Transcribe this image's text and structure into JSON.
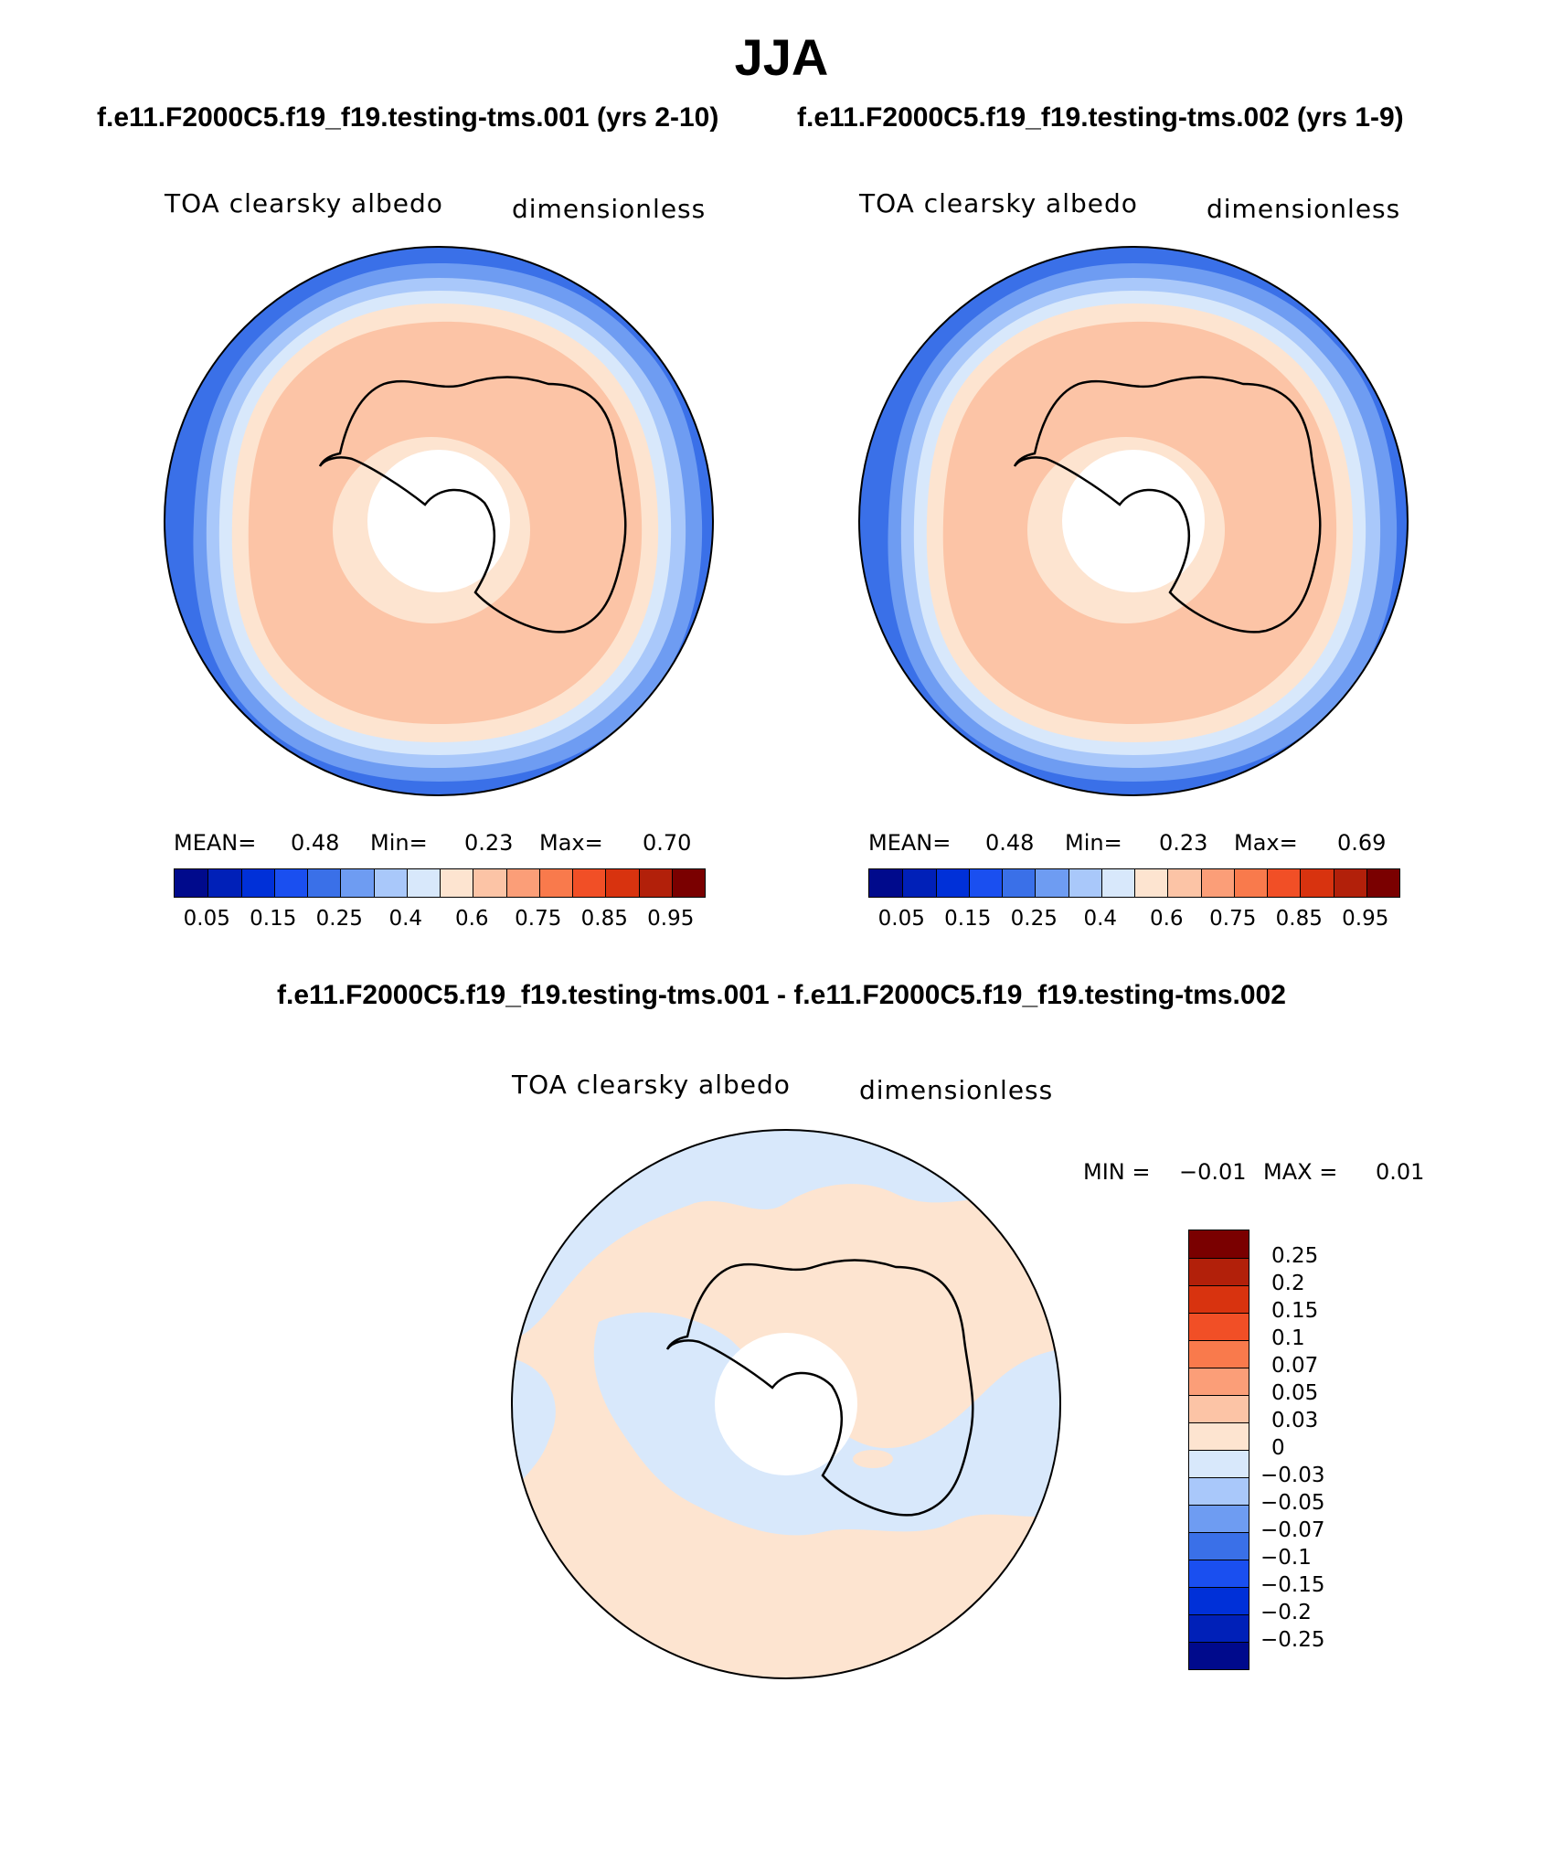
{
  "header": {
    "season": "JJA",
    "run1_title": "f.e11.F2000C5.f19_f19.testing-tms.001 (yrs 2-10)",
    "run2_title": "f.e11.F2000C5.f19_f19.testing-tms.002 (yrs 1-9)",
    "diff_title": "f.e11.F2000C5.f19_f19.testing-tms.001 - f.e11.F2000C5.f19_f19.testing-tms.002"
  },
  "colors": {
    "blue_red_scale": [
      "#000a8c",
      "#0020b8",
      "#0030d8",
      "#1a4ff0",
      "#3a70e8",
      "#6e9cf2",
      "#a9c8fa",
      "#d8e8fb",
      "#fde4d0",
      "#fcc4a6",
      "#fb9e78",
      "#f97a4c",
      "#f14f26",
      "#d8330f",
      "#b2200a",
      "#7a0000"
    ],
    "coast": "#000000"
  },
  "chart_data": [
    {
      "type": "heatmap",
      "projection": "south-polar-stereographic",
      "title": "f.e11.F2000C5.f19_f19.testing-tms.001 (yrs 2-10)",
      "variable": "TOA clearsky albedo",
      "units": "dimensionless",
      "stats": {
        "mean_label": "MEAN=",
        "mean": "0.48",
        "min_label": "Min=",
        "min": "0.23",
        "max_label": "Max=",
        "max": "0.70"
      },
      "levels": [
        0.05,
        0.1,
        0.15,
        0.2,
        0.25,
        0.3,
        0.4,
        0.5,
        0.6,
        0.7,
        0.75,
        0.8,
        0.85,
        0.9,
        0.95
      ],
      "tick_labels": [
        "0.05",
        "0.15",
        "0.25",
        "0.4",
        "0.6",
        "0.75",
        "0.85",
        "0.95"
      ],
      "field_by_latitude": [
        {
          "lat": -50,
          "value": 0.23
        },
        {
          "lat": -55,
          "value": 0.27
        },
        {
          "lat": -58,
          "value": 0.33
        },
        {
          "lat": -61,
          "value": 0.42
        },
        {
          "lat": -64,
          "value": 0.55
        },
        {
          "lat": -70,
          "value": 0.66
        },
        {
          "lat": -80,
          "value": 0.62
        }
      ]
    },
    {
      "type": "heatmap",
      "projection": "south-polar-stereographic",
      "title": "f.e11.F2000C5.f19_f19.testing-tms.002 (yrs 1-9)",
      "variable": "TOA clearsky albedo",
      "units": "dimensionless",
      "stats": {
        "mean_label": "MEAN=",
        "mean": "0.48",
        "min_label": "Min=",
        "min": "0.23",
        "max_label": "Max=",
        "max": "0.69"
      },
      "levels": [
        0.05,
        0.1,
        0.15,
        0.2,
        0.25,
        0.3,
        0.4,
        0.5,
        0.6,
        0.7,
        0.75,
        0.8,
        0.85,
        0.9,
        0.95
      ],
      "tick_labels": [
        "0.05",
        "0.15",
        "0.25",
        "0.4",
        "0.6",
        "0.75",
        "0.85",
        "0.95"
      ],
      "field_by_latitude": [
        {
          "lat": -50,
          "value": 0.23
        },
        {
          "lat": -55,
          "value": 0.27
        },
        {
          "lat": -58,
          "value": 0.33
        },
        {
          "lat": -61,
          "value": 0.42
        },
        {
          "lat": -64,
          "value": 0.55
        },
        {
          "lat": -70,
          "value": 0.66
        },
        {
          "lat": -80,
          "value": 0.62
        }
      ]
    },
    {
      "type": "heatmap",
      "projection": "south-polar-stereographic",
      "title": "f.e11.F2000C5.f19_f19.testing-tms.001 - f.e11.F2000C5.f19_f19.testing-tms.002",
      "variable": "TOA clearsky albedo",
      "units": "dimensionless",
      "stats": {
        "min_label": "MIN =",
        "min": "−0.01",
        "max_label": "MAX =",
        "max": "0.01"
      },
      "levels": [
        -0.25,
        -0.2,
        -0.15,
        -0.1,
        -0.07,
        -0.05,
        -0.03,
        0,
        0.03,
        0.05,
        0.07,
        0.1,
        0.15,
        0.2,
        0.25
      ],
      "tick_labels": [
        "0.25",
        "0.2",
        "0.15",
        "0.1",
        "0.07",
        "0.05",
        "0.03",
        "0",
        "−0.03",
        "−0.05",
        "−0.07",
        "−0.1",
        "−0.15",
        "−0.2",
        "−0.25"
      ],
      "field_summary": "Mostly between -0.03 and 0.03: light-blue (0 to -0.03) over the Pacific and Weddell sectors and the ocean near East Antarctica; pale orange (0 to 0.03) over the continent interior and Atlantic/Indian sectors."
    }
  ]
}
